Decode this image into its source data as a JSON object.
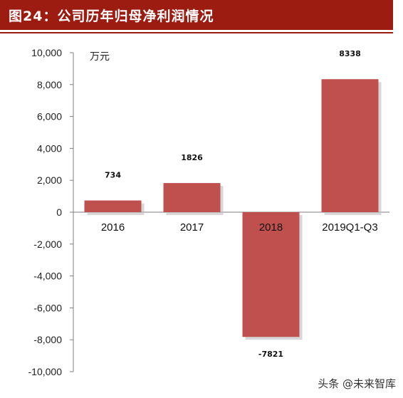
{
  "header": {
    "title": "图24：公司历年归母净利润情况"
  },
  "watermark": "头条 @未来智库",
  "chart_data": {
    "type": "bar",
    "title": "图24：公司历年归母净利润情况",
    "unit_label": "万元",
    "categories": [
      "2016",
      "2017",
      "2018",
      "2019Q1-Q3"
    ],
    "values": [
      734,
      1826,
      -7821,
      8338
    ],
    "data_labels": [
      "734",
      "1826",
      "-7821",
      "8338"
    ],
    "ylim": [
      -10000,
      10000
    ],
    "yticks": [
      10000,
      8000,
      6000,
      4000,
      2000,
      0,
      -2000,
      -4000,
      -6000,
      -8000,
      -10000
    ],
    "ytick_labels": [
      "10,000",
      "8,000",
      "6,000",
      "4,000",
      "2,000",
      "0",
      "-2,000",
      "-4,000",
      "-6,000",
      "-8,000",
      "-10,000"
    ],
    "bar_color": "#c0504d",
    "grid": false,
    "legend": "none"
  }
}
